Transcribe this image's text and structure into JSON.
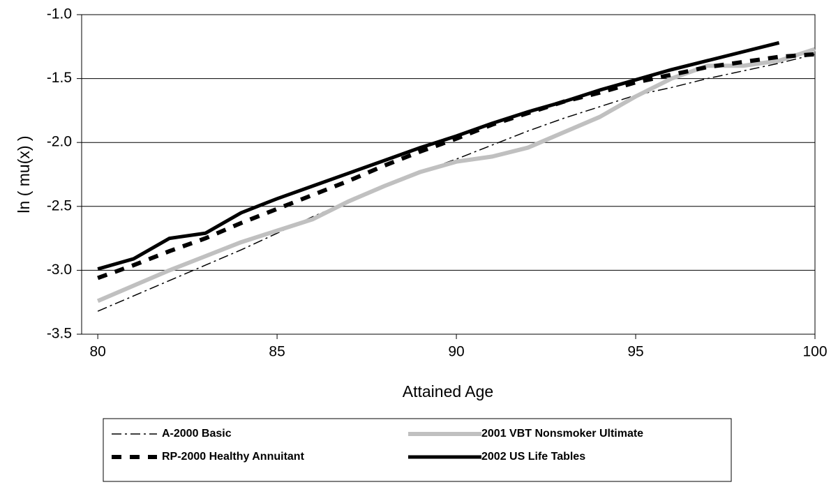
{
  "chart_data": {
    "type": "line",
    "x_label": "Attained Age",
    "y_label": "ln ( mu(x) )",
    "x": [
      80,
      81,
      82,
      83,
      84,
      85,
      86,
      87,
      88,
      89,
      90,
      91,
      92,
      93,
      94,
      95,
      96,
      97,
      98,
      99,
      100
    ],
    "xlim": [
      79.55,
      100
    ],
    "xticks": [
      80,
      85,
      90,
      95,
      100
    ],
    "ylim": [
      -3.5,
      -1.0
    ],
    "yticks": [
      {
        "value": -1.0,
        "label": "-1.0"
      },
      -1.5,
      {
        "value": -2.0,
        "label": "-2.0"
      },
      -2.5,
      {
        "value": -3.0,
        "label": "-3.0"
      },
      -3.5
    ],
    "grid": true,
    "series": [
      {
        "name": "A-2000 Basic",
        "color": "#000000",
        "width": 1.5,
        "dash": "14 5 3 5",
        "values": [
          -3.32,
          -3.2,
          -3.08,
          -2.96,
          -2.84,
          -2.71,
          -2.58,
          -2.46,
          -2.34,
          -2.23,
          -2.13,
          -2.02,
          -1.91,
          -1.81,
          -1.72,
          -1.63,
          -1.57,
          -1.5,
          -1.44,
          -1.38,
          -1.31
        ]
      },
      {
        "name": "2001 VBT Nonsmoker Ultimate",
        "color": "#c0c0c0",
        "width": 6,
        "dash": "none",
        "values": [
          -3.24,
          -3.12,
          -3.0,
          -2.89,
          -2.78,
          -2.69,
          -2.6,
          -2.46,
          -2.34,
          -2.23,
          -2.15,
          -2.11,
          -2.04,
          -1.92,
          -1.8,
          -1.64,
          -1.5,
          -1.4,
          -1.4,
          -1.36,
          -1.27
        ]
      },
      {
        "name": "RP-2000 Healthy Annuitant",
        "color": "#000000",
        "width": 6,
        "dash": "14 12",
        "values": [
          -3.06,
          -2.96,
          -2.85,
          -2.75,
          -2.63,
          -2.52,
          -2.41,
          -2.3,
          -2.18,
          -2.07,
          -1.97,
          -1.86,
          -1.77,
          -1.68,
          -1.61,
          -1.53,
          -1.47,
          -1.41,
          -1.37,
          -1.33,
          -1.31
        ]
      },
      {
        "name": "2002 US Life Tables",
        "color": "#000000",
        "width": 5,
        "dash": "none",
        "values": [
          -2.99,
          -2.91,
          -2.75,
          -2.71,
          -2.55,
          -2.44,
          -2.34,
          -2.24,
          -2.14,
          -2.04,
          -1.95,
          -1.85,
          -1.76,
          -1.68,
          -1.59,
          -1.51,
          -1.43,
          -1.36,
          -1.29,
          -1.22,
          null
        ]
      }
    ]
  }
}
